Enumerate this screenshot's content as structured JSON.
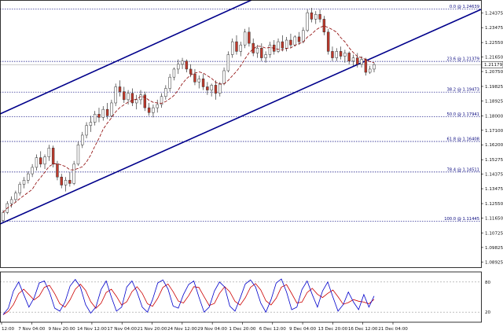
{
  "chart_data": {
    "type": "candlestick",
    "title": "",
    "current_price": "1.21179",
    "price_axis": {
      "range": [
        1.086,
        1.248
      ],
      "tick_labels": [
        "1.24375",
        "1.23475",
        "1.22550",
        "1.21650",
        "1.20750",
        "1.19825",
        "1.18925",
        "1.18000",
        "1.17100",
        "1.16200",
        "1.15275",
        "1.14375",
        "1.13475",
        "1.12550",
        "1.11650",
        "1.10725",
        "1.09825",
        "1.08925"
      ]
    },
    "time_axis": {
      "labels": [
        "12:00",
        "7 Nov 04:00",
        "9 Nov 20:00",
        "14 Nov 12:00",
        "17 Nov 04:00",
        "21 Nov 20:00",
        "24 Nov 12:00",
        "29 Nov 04:00",
        "1 Dec 20:00",
        "6 Dec 12:00",
        "9 Dec 04:00",
        "13 Dec 20:00",
        "16 Dec 12:00",
        "21 Dec 04:00"
      ]
    },
    "fibonacci_levels": [
      {
        "label": "0.0 @ 1.24639",
        "price": 1.24639
      },
      {
        "label": "23.6 @ 1.21379",
        "price": 1.21379
      },
      {
        "label": "38.2 @ 1.19473",
        "price": 1.19473
      },
      {
        "label": "50.0 @ 1.17941",
        "price": 1.17941
      },
      {
        "label": "61.8 @ 1.16408",
        "price": 1.16408
      },
      {
        "label": "78.4 @ 1.14511",
        "price": 1.14511
      },
      {
        "label": "100.0 @ 1.11445",
        "price": 1.11445
      }
    ],
    "candles_ohlc_approx": [
      [
        1.115,
        1.1215,
        1.114,
        1.12
      ],
      [
        1.12,
        1.127,
        1.119,
        1.1255
      ],
      [
        1.1255,
        1.13,
        1.123,
        1.128
      ],
      [
        1.128,
        1.1335,
        1.1265,
        1.132
      ],
      [
        1.132,
        1.139,
        1.1305,
        1.1375
      ],
      [
        1.1375,
        1.142,
        1.135,
        1.14
      ],
      [
        1.14,
        1.1455,
        1.138,
        1.144
      ],
      [
        1.144,
        1.15,
        1.142,
        1.148
      ],
      [
        1.148,
        1.156,
        1.146,
        1.154
      ],
      [
        1.154,
        1.158,
        1.148,
        1.15
      ],
      [
        1.15,
        1.156,
        1.147,
        1.1545
      ],
      [
        1.1545,
        1.162,
        1.152,
        1.16
      ],
      [
        1.16,
        1.1615,
        1.148,
        1.15
      ],
      [
        1.15,
        1.152,
        1.14,
        1.142
      ],
      [
        1.142,
        1.144,
        1.135,
        1.137
      ],
      [
        1.137,
        1.142,
        1.133,
        1.14
      ],
      [
        1.14,
        1.145,
        1.136,
        1.138
      ],
      [
        1.138,
        1.152,
        1.137,
        1.15
      ],
      [
        1.15,
        1.164,
        1.149,
        1.162
      ],
      [
        1.162,
        1.17,
        1.16,
        1.168
      ],
      [
        1.168,
        1.176,
        1.166,
        1.174
      ],
      [
        1.174,
        1.18,
        1.17,
        1.176
      ],
      [
        1.176,
        1.183,
        1.174,
        1.181
      ],
      [
        1.181,
        1.185,
        1.176,
        1.179
      ],
      [
        1.179,
        1.186,
        1.177,
        1.184
      ],
      [
        1.184,
        1.188,
        1.178,
        1.18
      ],
      [
        1.18,
        1.19,
        1.179,
        1.188
      ],
      [
        1.188,
        1.2,
        1.186,
        1.198
      ],
      [
        1.198,
        1.202,
        1.192,
        1.195
      ],
      [
        1.195,
        1.198,
        1.188,
        1.19
      ],
      [
        1.19,
        1.196,
        1.187,
        1.194
      ],
      [
        1.194,
        1.197,
        1.186,
        1.188
      ],
      [
        1.188,
        1.193,
        1.184,
        1.19
      ],
      [
        1.19,
        1.196,
        1.187,
        1.193
      ],
      [
        1.193,
        1.195,
        1.183,
        1.185
      ],
      [
        1.185,
        1.188,
        1.18,
        1.182
      ],
      [
        1.182,
        1.187,
        1.179,
        1.185
      ],
      [
        1.185,
        1.19,
        1.182,
        1.187
      ],
      [
        1.187,
        1.194,
        1.185,
        1.192
      ],
      [
        1.192,
        1.199,
        1.19,
        1.197
      ],
      [
        1.197,
        1.206,
        1.195,
        1.204
      ],
      [
        1.204,
        1.21,
        1.202,
        1.209
      ],
      [
        1.209,
        1.215,
        1.206,
        1.212
      ],
      [
        1.212,
        1.216,
        1.209,
        1.214
      ],
      [
        1.214,
        1.215,
        1.207,
        1.209
      ],
      [
        1.209,
        1.212,
        1.204,
        1.206
      ],
      [
        1.206,
        1.209,
        1.199,
        1.201
      ],
      [
        1.201,
        1.205,
        1.197,
        1.203
      ],
      [
        1.203,
        1.206,
        1.196,
        1.198
      ],
      [
        1.198,
        1.201,
        1.193,
        1.196
      ],
      [
        1.196,
        1.2,
        1.192,
        1.199
      ],
      [
        1.199,
        1.202,
        1.19,
        1.194
      ],
      [
        1.194,
        1.201,
        1.192,
        1.2
      ],
      [
        1.2,
        1.21,
        1.199,
        1.208
      ],
      [
        1.208,
        1.22,
        1.207,
        1.218
      ],
      [
        1.218,
        1.228,
        1.216,
        1.226
      ],
      [
        1.226,
        1.23,
        1.218,
        1.22
      ],
      [
        1.22,
        1.226,
        1.217,
        1.224
      ],
      [
        1.224,
        1.234,
        1.222,
        1.232
      ],
      [
        1.232,
        1.235,
        1.223,
        1.225
      ],
      [
        1.225,
        1.228,
        1.217,
        1.219
      ],
      [
        1.219,
        1.224,
        1.216,
        1.222
      ],
      [
        1.222,
        1.225,
        1.214,
        1.216
      ],
      [
        1.216,
        1.22,
        1.213,
        1.218
      ],
      [
        1.218,
        1.226,
        1.216,
        1.224
      ],
      [
        1.224,
        1.227,
        1.218,
        1.22
      ],
      [
        1.22,
        1.228,
        1.219,
        1.226
      ],
      [
        1.226,
        1.23,
        1.22,
        1.222
      ],
      [
        1.222,
        1.229,
        1.22,
        1.227
      ],
      [
        1.227,
        1.231,
        1.222,
        1.224
      ],
      [
        1.224,
        1.23,
        1.223,
        1.229
      ],
      [
        1.229,
        1.232,
        1.224,
        1.226
      ],
      [
        1.226,
        1.235,
        1.225,
        1.233
      ],
      [
        1.233,
        1.246,
        1.232,
        1.244
      ],
      [
        1.244,
        1.247,
        1.238,
        1.24
      ],
      [
        1.24,
        1.245,
        1.237,
        1.243
      ],
      [
        1.243,
        1.246,
        1.238,
        1.24
      ],
      [
        1.24,
        1.242,
        1.23,
        1.232
      ],
      [
        1.232,
        1.234,
        1.218,
        1.22
      ],
      [
        1.22,
        1.223,
        1.214,
        1.216
      ],
      [
        1.216,
        1.222,
        1.214,
        1.22
      ],
      [
        1.22,
        1.223,
        1.215,
        1.217
      ],
      [
        1.217,
        1.221,
        1.213,
        1.219
      ],
      [
        1.219,
        1.22,
        1.212,
        1.214
      ],
      [
        1.214,
        1.218,
        1.211,
        1.216
      ],
      [
        1.216,
        1.219,
        1.21,
        1.212
      ],
      [
        1.212,
        1.217,
        1.21,
        1.215
      ],
      [
        1.215,
        1.216,
        1.205,
        1.207
      ],
      [
        1.207,
        1.211,
        1.206,
        1.209
      ],
      [
        1.209,
        1.213,
        1.207,
        1.2118
      ]
    ],
    "stochastic_oscillator": {
      "levels": [
        "80",
        "20"
      ],
      "range": [
        0,
        100
      ],
      "k_line_approx": [
        15,
        28,
        62,
        80,
        55,
        30,
        48,
        78,
        82,
        60,
        28,
        22,
        40,
        72,
        85,
        70,
        35,
        18,
        30,
        65,
        82,
        50,
        22,
        30,
        70,
        82,
        60,
        30,
        20,
        45,
        78,
        84,
        66,
        32,
        28,
        55,
        75,
        82,
        50,
        20,
        30,
        62,
        80,
        70,
        32,
        22,
        48,
        76,
        84,
        70,
        38,
        20,
        45,
        78,
        86,
        60,
        25,
        30,
        65,
        82,
        55,
        30,
        62,
        80,
        50,
        22,
        35,
        60,
        40,
        25,
        55,
        30,
        52
      ]
    },
    "series_colors": {
      "bull_body": "#ffffff",
      "bear_body": "#c0392b",
      "wick": "#333333",
      "moving_average": "#8b0000",
      "channel": "#00008b",
      "fib": "#0a0a80",
      "stoch_main": "#0000cc",
      "stoch_signal": "#cc0000"
    }
  }
}
